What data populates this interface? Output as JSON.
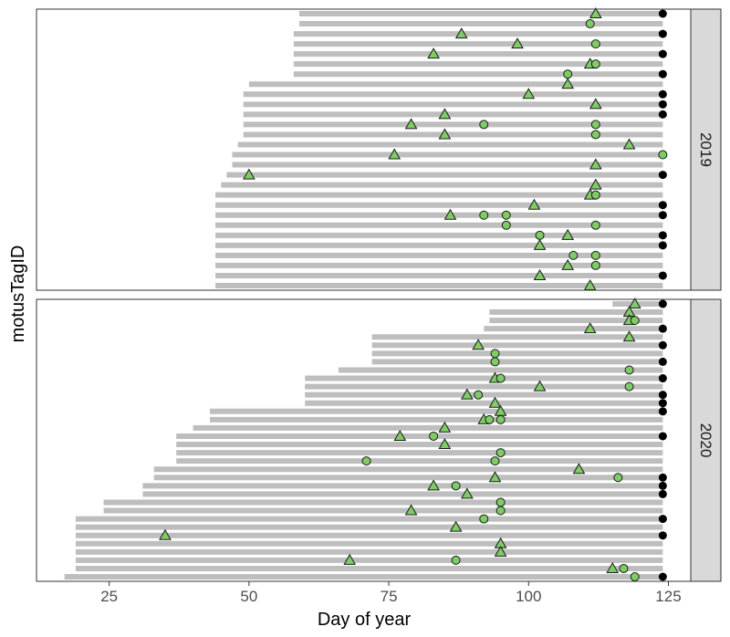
{
  "chart_data": {
    "type": "scatter",
    "xlabel": "Day of year",
    "ylabel": "motusTagID",
    "xlim": [
      12,
      129
    ],
    "x_ticks": [
      25,
      50,
      75,
      100,
      125
    ],
    "y_tick_labels": "none",
    "grid": false,
    "colors": {
      "range_bar": "#bebebe",
      "detection_fill": "#7fcc66",
      "marker_edge": "#1a1a1a",
      "end_marker": "#000000",
      "strip_background": "#d9d9d9"
    },
    "marker_shapes": {
      "triangle": "green triangle",
      "circle": "green circle",
      "end": "black dot"
    },
    "facets": [
      {
        "label": "2019",
        "tags": [
          {
            "start": 59,
            "end": 124,
            "points": [
              {
                "x": 112,
                "shape": "triangle"
              },
              {
                "x": 124,
                "shape": "end"
              }
            ]
          },
          {
            "start": 59,
            "end": 124,
            "points": [
              {
                "x": 111,
                "shape": "circle"
              }
            ]
          },
          {
            "start": 58,
            "end": 124,
            "points": [
              {
                "x": 88,
                "shape": "triangle"
              },
              {
                "x": 124,
                "shape": "end"
              }
            ]
          },
          {
            "start": 58,
            "end": 124,
            "points": [
              {
                "x": 98,
                "shape": "triangle"
              },
              {
                "x": 112,
                "shape": "circle"
              }
            ]
          },
          {
            "start": 58,
            "end": 124,
            "points": [
              {
                "x": 83,
                "shape": "triangle"
              },
              {
                "x": 124,
                "shape": "end"
              }
            ]
          },
          {
            "start": 58,
            "end": 124,
            "points": [
              {
                "x": 111,
                "shape": "triangle"
              },
              {
                "x": 112,
                "shape": "circle"
              }
            ]
          },
          {
            "start": 58,
            "end": 124,
            "points": [
              {
                "x": 107,
                "shape": "circle"
              },
              {
                "x": 124,
                "shape": "end"
              }
            ]
          },
          {
            "start": 50,
            "end": 124,
            "points": [
              {
                "x": 107,
                "shape": "triangle"
              }
            ]
          },
          {
            "start": 49,
            "end": 124,
            "points": [
              {
                "x": 100,
                "shape": "triangle"
              },
              {
                "x": 124,
                "shape": "end"
              }
            ]
          },
          {
            "start": 49,
            "end": 124,
            "points": [
              {
                "x": 112,
                "shape": "triangle"
              },
              {
                "x": 124,
                "shape": "end"
              }
            ]
          },
          {
            "start": 49,
            "end": 124,
            "points": [
              {
                "x": 85,
                "shape": "triangle"
              },
              {
                "x": 124,
                "shape": "end"
              }
            ]
          },
          {
            "start": 49,
            "end": 124,
            "points": [
              {
                "x": 79,
                "shape": "triangle"
              },
              {
                "x": 92,
                "shape": "circle"
              },
              {
                "x": 112,
                "shape": "circle"
              }
            ]
          },
          {
            "start": 49,
            "end": 124,
            "points": [
              {
                "x": 85,
                "shape": "triangle"
              },
              {
                "x": 112,
                "shape": "circle"
              }
            ]
          },
          {
            "start": 48,
            "end": 124,
            "points": [
              {
                "x": 118,
                "shape": "triangle"
              }
            ]
          },
          {
            "start": 47,
            "end": 124,
            "points": [
              {
                "x": 76,
                "shape": "triangle"
              },
              {
                "x": 124,
                "shape": "circle"
              }
            ]
          },
          {
            "start": 47,
            "end": 124,
            "points": [
              {
                "x": 112,
                "shape": "triangle"
              }
            ]
          },
          {
            "start": 46,
            "end": 124,
            "points": [
              {
                "x": 50,
                "shape": "triangle"
              },
              {
                "x": 124,
                "shape": "end"
              }
            ]
          },
          {
            "start": 45,
            "end": 124,
            "points": [
              {
                "x": 112,
                "shape": "triangle"
              }
            ]
          },
          {
            "start": 44,
            "end": 124,
            "points": [
              {
                "x": 111,
                "shape": "triangle"
              },
              {
                "x": 112,
                "shape": "circle"
              }
            ]
          },
          {
            "start": 44,
            "end": 124,
            "points": [
              {
                "x": 101,
                "shape": "triangle"
              },
              {
                "x": 124,
                "shape": "end"
              }
            ]
          },
          {
            "start": 44,
            "end": 124,
            "points": [
              {
                "x": 86,
                "shape": "triangle"
              },
              {
                "x": 92,
                "shape": "circle"
              },
              {
                "x": 96,
                "shape": "circle"
              },
              {
                "x": 124,
                "shape": "end"
              }
            ]
          },
          {
            "start": 44,
            "end": 124,
            "points": [
              {
                "x": 96,
                "shape": "circle"
              },
              {
                "x": 112,
                "shape": "circle"
              }
            ]
          },
          {
            "start": 44,
            "end": 124,
            "points": [
              {
                "x": 102,
                "shape": "circle"
              },
              {
                "x": 107,
                "shape": "triangle"
              },
              {
                "x": 124,
                "shape": "end"
              }
            ]
          },
          {
            "start": 44,
            "end": 124,
            "points": [
              {
                "x": 102,
                "shape": "triangle"
              },
              {
                "x": 124,
                "shape": "end"
              }
            ]
          },
          {
            "start": 44,
            "end": 124,
            "points": [
              {
                "x": 108,
                "shape": "circle"
              },
              {
                "x": 112,
                "shape": "circle"
              }
            ]
          },
          {
            "start": 44,
            "end": 124,
            "points": [
              {
                "x": 107,
                "shape": "triangle"
              },
              {
                "x": 112,
                "shape": "circle"
              }
            ]
          },
          {
            "start": 44,
            "end": 124,
            "points": [
              {
                "x": 102,
                "shape": "triangle"
              },
              {
                "x": 124,
                "shape": "end"
              }
            ]
          },
          {
            "start": 44,
            "end": 124,
            "points": [
              {
                "x": 111,
                "shape": "triangle"
              }
            ]
          }
        ]
      },
      {
        "label": "2020",
        "tags": [
          {
            "start": 115,
            "end": 124,
            "points": [
              {
                "x": 119,
                "shape": "triangle"
              },
              {
                "x": 124,
                "shape": "end"
              }
            ]
          },
          {
            "start": 93,
            "end": 124,
            "points": [
              {
                "x": 118,
                "shape": "triangle"
              }
            ]
          },
          {
            "start": 93,
            "end": 124,
            "points": [
              {
                "x": 118,
                "shape": "triangle"
              },
              {
                "x": 119,
                "shape": "circle"
              }
            ]
          },
          {
            "start": 92,
            "end": 124,
            "points": [
              {
                "x": 111,
                "shape": "triangle"
              },
              {
                "x": 124,
                "shape": "end"
              }
            ]
          },
          {
            "start": 72,
            "end": 124,
            "points": [
              {
                "x": 118,
                "shape": "triangle"
              }
            ]
          },
          {
            "start": 72,
            "end": 124,
            "points": [
              {
                "x": 91,
                "shape": "triangle"
              },
              {
                "x": 124,
                "shape": "end"
              }
            ]
          },
          {
            "start": 72,
            "end": 124,
            "points": [
              {
                "x": 94,
                "shape": "circle"
              }
            ]
          },
          {
            "start": 72,
            "end": 124,
            "points": [
              {
                "x": 94,
                "shape": "circle"
              },
              {
                "x": 124,
                "shape": "end"
              }
            ]
          },
          {
            "start": 66,
            "end": 124,
            "points": [
              {
                "x": 118,
                "shape": "circle"
              }
            ]
          },
          {
            "start": 60,
            "end": 124,
            "points": [
              {
                "x": 94,
                "shape": "triangle"
              },
              {
                "x": 95,
                "shape": "circle"
              },
              {
                "x": 124,
                "shape": "end"
              }
            ]
          },
          {
            "start": 60,
            "end": 124,
            "points": [
              {
                "x": 102,
                "shape": "triangle"
              },
              {
                "x": 118,
                "shape": "circle"
              }
            ]
          },
          {
            "start": 60,
            "end": 124,
            "points": [
              {
                "x": 89,
                "shape": "triangle"
              },
              {
                "x": 91,
                "shape": "circle"
              },
              {
                "x": 124,
                "shape": "end"
              }
            ]
          },
          {
            "start": 60,
            "end": 124,
            "points": [
              {
                "x": 94,
                "shape": "triangle"
              },
              {
                "x": 124,
                "shape": "end"
              }
            ]
          },
          {
            "start": 43,
            "end": 124,
            "points": [
              {
                "x": 95,
                "shape": "triangle"
              },
              {
                "x": 124,
                "shape": "end"
              }
            ]
          },
          {
            "start": 43,
            "end": 124,
            "points": [
              {
                "x": 92,
                "shape": "triangle"
              },
              {
                "x": 93,
                "shape": "circle"
              },
              {
                "x": 95,
                "shape": "circle"
              }
            ]
          },
          {
            "start": 40,
            "end": 124,
            "points": [
              {
                "x": 85,
                "shape": "triangle"
              }
            ]
          },
          {
            "start": 37,
            "end": 124,
            "points": [
              {
                "x": 77,
                "shape": "triangle"
              },
              {
                "x": 83,
                "shape": "circle"
              },
              {
                "x": 124,
                "shape": "end"
              }
            ]
          },
          {
            "start": 37,
            "end": 124,
            "points": [
              {
                "x": 85,
                "shape": "triangle"
              }
            ]
          },
          {
            "start": 37,
            "end": 124,
            "points": [
              {
                "x": 95,
                "shape": "circle"
              }
            ]
          },
          {
            "start": 37,
            "end": 124,
            "points": [
              {
                "x": 71,
                "shape": "circle"
              },
              {
                "x": 94,
                "shape": "circle"
              }
            ]
          },
          {
            "start": 33,
            "end": 124,
            "points": [
              {
                "x": 109,
                "shape": "triangle"
              }
            ]
          },
          {
            "start": 33,
            "end": 124,
            "points": [
              {
                "x": 94,
                "shape": "triangle"
              },
              {
                "x": 116,
                "shape": "circle"
              },
              {
                "x": 124,
                "shape": "end"
              }
            ]
          },
          {
            "start": 31,
            "end": 124,
            "points": [
              {
                "x": 83,
                "shape": "triangle"
              },
              {
                "x": 87,
                "shape": "circle"
              },
              {
                "x": 124,
                "shape": "end"
              }
            ]
          },
          {
            "start": 31,
            "end": 124,
            "points": [
              {
                "x": 89,
                "shape": "triangle"
              },
              {
                "x": 124,
                "shape": "end"
              }
            ]
          },
          {
            "start": 24,
            "end": 124,
            "points": [
              {
                "x": 95,
                "shape": "circle"
              }
            ]
          },
          {
            "start": 24,
            "end": 124,
            "points": [
              {
                "x": 79,
                "shape": "triangle"
              },
              {
                "x": 95,
                "shape": "circle"
              }
            ]
          },
          {
            "start": 19,
            "end": 124,
            "points": [
              {
                "x": 92,
                "shape": "circle"
              },
              {
                "x": 124,
                "shape": "end"
              }
            ]
          },
          {
            "start": 19,
            "end": 124,
            "points": [
              {
                "x": 87,
                "shape": "triangle"
              }
            ]
          },
          {
            "start": 19,
            "end": 124,
            "points": [
              {
                "x": 35,
                "shape": "triangle"
              },
              {
                "x": 124,
                "shape": "end"
              }
            ]
          },
          {
            "start": 19,
            "end": 124,
            "points": [
              {
                "x": 95,
                "shape": "triangle"
              }
            ]
          },
          {
            "start": 19,
            "end": 124,
            "points": [
              {
                "x": 95,
                "shape": "triangle"
              }
            ]
          },
          {
            "start": 19,
            "end": 124,
            "points": [
              {
                "x": 68,
                "shape": "triangle"
              },
              {
                "x": 87,
                "shape": "circle"
              }
            ]
          },
          {
            "start": 19,
            "end": 124,
            "points": [
              {
                "x": 115,
                "shape": "triangle"
              },
              {
                "x": 117,
                "shape": "circle"
              }
            ]
          },
          {
            "start": 17,
            "end": 124,
            "points": [
              {
                "x": 119,
                "shape": "circle"
              },
              {
                "x": 124,
                "shape": "end"
              }
            ]
          }
        ]
      }
    ]
  }
}
